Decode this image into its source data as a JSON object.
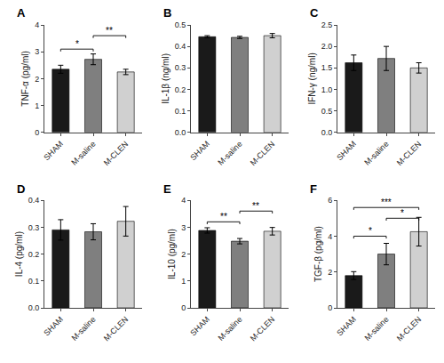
{
  "chart_data": [
    {
      "type": "bar",
      "title": "A",
      "ylabel": "TNF-α (pg/ml)",
      "categories": [
        "SHAM",
        "M-saline",
        "M-CLEN"
      ],
      "values": [
        2.35,
        2.72,
        2.25
      ],
      "errors": [
        0.15,
        0.2,
        0.1
      ],
      "colors": [
        "#1a1a1a",
        "#7f7f7f",
        "#d0d0d0"
      ],
      "ylim": [
        0,
        4
      ],
      "yticks": [
        0,
        1,
        2,
        3,
        4
      ],
      "grid": false,
      "annotations": [
        {
          "text": "*",
          "x": [
            "SHAM",
            "M-saline"
          ],
          "y": 3.1
        },
        {
          "text": "**",
          "x": [
            "M-saline",
            "M-CLEN"
          ],
          "y": 3.6
        }
      ]
    },
    {
      "type": "bar",
      "title": "B",
      "ylabel": "IL-1β (ng/ml)",
      "categories": [
        "SHAM",
        "M-saline",
        "M-CLEN"
      ],
      "values": [
        0.445,
        0.442,
        0.45
      ],
      "errors": [
        0.005,
        0.005,
        0.01
      ],
      "colors": [
        "#1a1a1a",
        "#7f7f7f",
        "#d0d0d0"
      ],
      "ylim": [
        0,
        0.5
      ],
      "yticks": [
        {
          "value": 0,
          "label": "0.0"
        },
        0.1,
        0.2,
        0.3,
        0.4,
        0.5
      ],
      "grid": false
    },
    {
      "type": "bar",
      "title": "C",
      "ylabel": "IFN-γ (ng/ml)",
      "categories": [
        "SHAM",
        "M-saline",
        "M-CLEN"
      ],
      "values": [
        1.62,
        1.72,
        1.5
      ],
      "errors": [
        0.18,
        0.28,
        0.12
      ],
      "colors": [
        "#1a1a1a",
        "#7f7f7f",
        "#d0d0d0"
      ],
      "ylim": [
        0,
        2.5
      ],
      "yticks": [
        {
          "value": 0,
          "label": "0.0"
        },
        0.5,
        {
          "value": 1,
          "label": "1.0"
        },
        1.5,
        {
          "value": 2,
          "label": "2.0"
        },
        2.5
      ],
      "grid": false
    },
    {
      "type": "bar",
      "title": "D",
      "ylabel": "IL-4 (pg/ml)",
      "categories": [
        "SHAM",
        "M-saline",
        "M-CLEN"
      ],
      "values": [
        0.29,
        0.283,
        0.322
      ],
      "errors": [
        0.038,
        0.03,
        0.055
      ],
      "colors": [
        "#1a1a1a",
        "#7f7f7f",
        "#d0d0d0"
      ],
      "ylim": [
        0,
        0.4
      ],
      "yticks": [
        {
          "value": 0,
          "label": "0.0"
        },
        0.1,
        0.2,
        0.3,
        0.4
      ],
      "grid": false
    },
    {
      "type": "bar",
      "title": "E",
      "ylabel": "IL-10 (pg/ml)",
      "categories": [
        "SHAM",
        "M-saline",
        "M-CLEN"
      ],
      "values": [
        2.88,
        2.48,
        2.85
      ],
      "errors": [
        0.1,
        0.1,
        0.14
      ],
      "colors": [
        "#1a1a1a",
        "#7f7f7f",
        "#d0d0d0"
      ],
      "ylim": [
        0,
        4
      ],
      "yticks": [
        0,
        1,
        2,
        3,
        4
      ],
      "grid": false,
      "annotations": [
        {
          "text": "**",
          "x": [
            "SHAM",
            "M-saline"
          ],
          "y": 3.2
        },
        {
          "text": "**",
          "x": [
            "M-saline",
            "M-CLEN"
          ],
          "y": 3.6
        }
      ]
    },
    {
      "type": "bar",
      "title": "F",
      "ylabel": "TGF-β (pg/ml)",
      "categories": [
        "SHAM",
        "M-saline",
        "M-CLEN"
      ],
      "values": [
        1.8,
        3.0,
        4.25
      ],
      "errors": [
        0.22,
        0.6,
        0.8
      ],
      "colors": [
        "#1a1a1a",
        "#7f7f7f",
        "#d0d0d0"
      ],
      "ylim": [
        0,
        6
      ],
      "yticks": [
        0,
        2,
        4,
        6
      ],
      "grid": false,
      "annotations": [
        {
          "text": "*",
          "x": [
            "SHAM",
            "M-saline"
          ],
          "y": 4.0
        },
        {
          "text": "*",
          "x": [
            "M-saline",
            "M-CLEN"
          ],
          "y": 5.0
        },
        {
          "text": "***",
          "x": [
            "SHAM",
            "M-CLEN"
          ],
          "y": 5.6
        }
      ]
    }
  ]
}
